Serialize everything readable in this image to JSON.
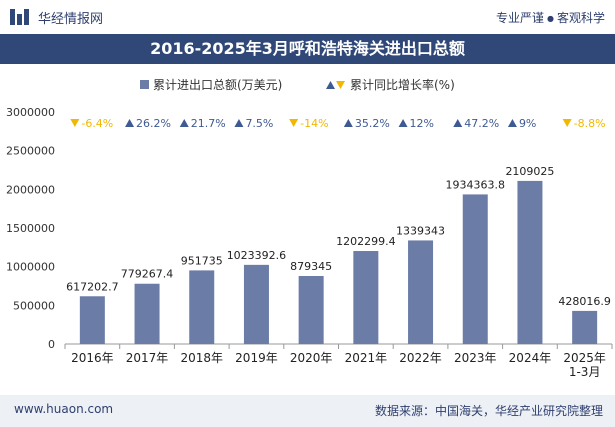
{
  "header": {
    "site_name": "华经情报网",
    "slogan_left": "专业严谨",
    "slogan_right": "客观科学"
  },
  "chart_title": "2016-2025年3月呼和浩特海关进出口总额",
  "legend": {
    "bar_label": "累计进出口总额(万美元)",
    "growth_label": "累计同比增长率(%)"
  },
  "footer": {
    "website": "www.huaon.com",
    "source": "数据来源：中国海关，华经产业研究院整理"
  },
  "colors": {
    "bar": "#6b7ca6",
    "up": "#3f5a92",
    "down": "#f2b800",
    "title_bg": "#2f4877"
  },
  "chart_data": {
    "type": "bar",
    "title": "2016-2025年3月呼和浩特海关进出口总额",
    "categories": [
      "2016年",
      "2017年",
      "2018年",
      "2019年",
      "2020年",
      "2021年",
      "2022年",
      "2023年",
      "2024年",
      "2025年\n1-3月"
    ],
    "series": [
      {
        "name": "累计进出口总额(万美元)",
        "values": [
          617202.7,
          779267.4,
          951735,
          1023392.6,
          879345,
          1202299.4,
          1339343,
          1934363.8,
          2109025,
          428016.9
        ],
        "labels": [
          "617202.7",
          "779267.4",
          "951735",
          "1023392.6",
          "879345",
          "1202299.4",
          "1339343",
          "1934363.8",
          "2109025",
          "428016.9"
        ]
      },
      {
        "name": "累计同比增长率(%)",
        "values": [
          -6.4,
          26.2,
          21.7,
          7.5,
          -14,
          35.2,
          12,
          47.2,
          9,
          -8.8
        ],
        "labels": [
          "-6.4%",
          "26.2%",
          "21.7%",
          "7.5%",
          "-14%",
          "35.2%",
          "12%",
          "47.2%",
          "9%",
          "-8.8%"
        ]
      }
    ],
    "yticks": [
      "0",
      "500000",
      "1000000",
      "1500000",
      "2000000",
      "2500000",
      "3000000"
    ],
    "ylim": [
      0,
      3000000
    ],
    "legend_position": "top-center",
    "grid": false
  }
}
